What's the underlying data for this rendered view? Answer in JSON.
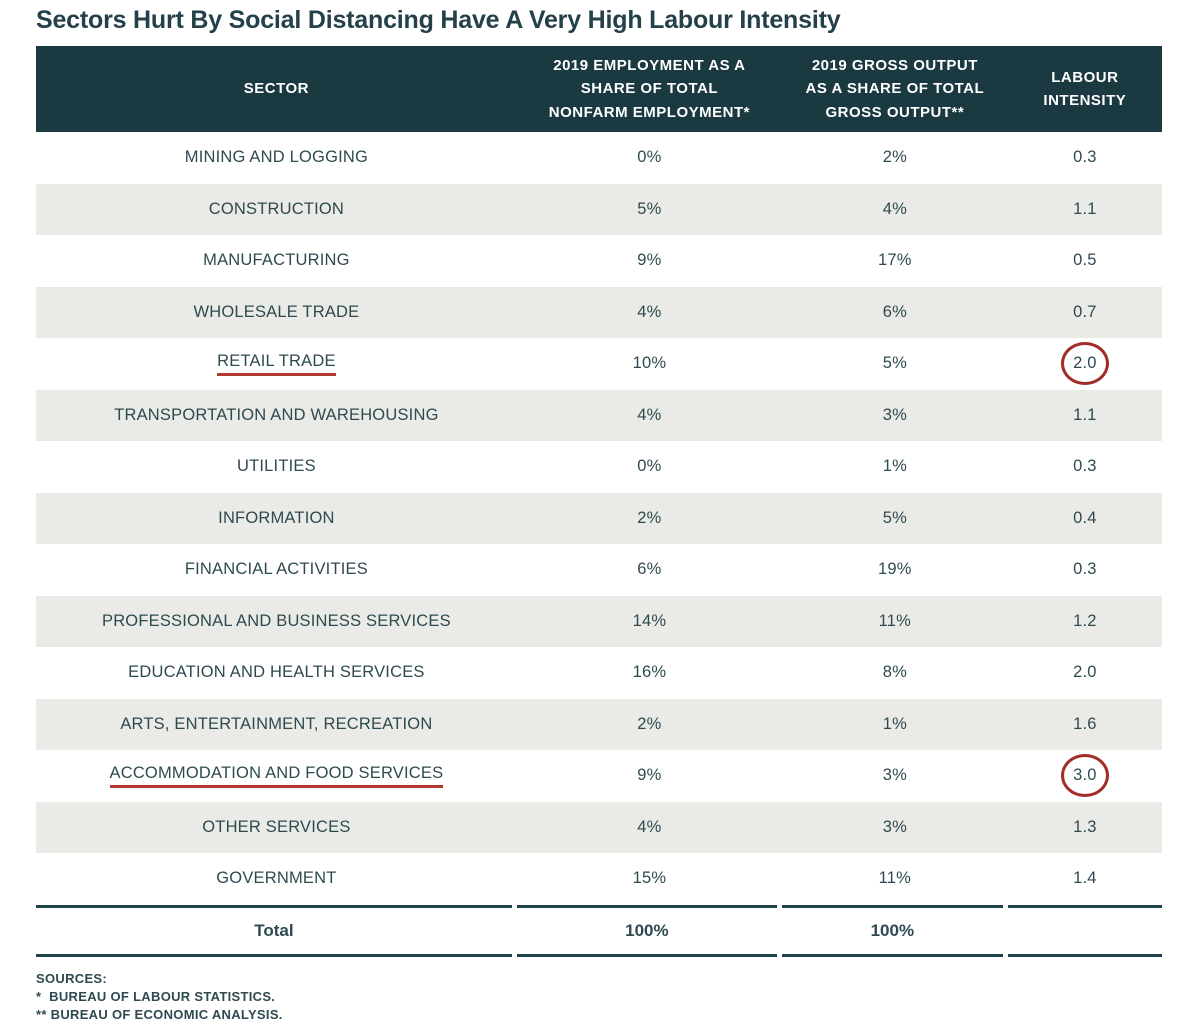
{
  "title": "Sectors Hurt By Social Distancing Have A Very High Labour Intensity",
  "colors": {
    "header_bg": "#1b3940",
    "stripe_bg": "#eaeae6",
    "text": "#2e4a50",
    "annotation_red": "#a22d28"
  },
  "table": {
    "columns": [
      "SECTOR",
      "2019 EMPLOYMENT AS A\nSHARE OF TOTAL\nNONFARM EMPLOYMENT*",
      "2019 GROSS OUTPUT\nAS A SHARE OF TOTAL\nGROSS OUTPUT**",
      "LABOUR\nINTENSITY"
    ],
    "rows": [
      {
        "sector": "MINING AND LOGGING",
        "employment": "0%",
        "output": "2%",
        "intensity": "0.3",
        "underline": false,
        "circle": false
      },
      {
        "sector": "CONSTRUCTION",
        "employment": "5%",
        "output": "4%",
        "intensity": "1.1",
        "underline": false,
        "circle": false
      },
      {
        "sector": "MANUFACTURING",
        "employment": "9%",
        "output": "17%",
        "intensity": "0.5",
        "underline": false,
        "circle": false
      },
      {
        "sector": "WHOLESALE TRADE",
        "employment": "4%",
        "output": "6%",
        "intensity": "0.7",
        "underline": false,
        "circle": false
      },
      {
        "sector": "RETAIL TRADE",
        "employment": "10%",
        "output": "5%",
        "intensity": "2.0",
        "underline": true,
        "circle": true
      },
      {
        "sector": "TRANSPORTATION AND WAREHOUSING",
        "employment": "4%",
        "output": "3%",
        "intensity": "1.1",
        "underline": false,
        "circle": false
      },
      {
        "sector": "UTILITIES",
        "employment": "0%",
        "output": "1%",
        "intensity": "0.3",
        "underline": false,
        "circle": false
      },
      {
        "sector": "INFORMATION",
        "employment": "2%",
        "output": "5%",
        "intensity": "0.4",
        "underline": false,
        "circle": false
      },
      {
        "sector": "FINANCIAL ACTIVITIES",
        "employment": "6%",
        "output": "19%",
        "intensity": "0.3",
        "underline": false,
        "circle": false
      },
      {
        "sector": "PROFESSIONAL AND BUSINESS SERVICES",
        "employment": "14%",
        "output": "11%",
        "intensity": "1.2",
        "underline": false,
        "circle": false
      },
      {
        "sector": "EDUCATION AND HEALTH SERVICES",
        "employment": "16%",
        "output": "8%",
        "intensity": "2.0",
        "underline": false,
        "circle": false
      },
      {
        "sector": "ARTS, ENTERTAINMENT, RECREATION",
        "employment": "2%",
        "output": "1%",
        "intensity": "1.6",
        "underline": false,
        "circle": false
      },
      {
        "sector": "ACCOMMODATION AND FOOD SERVICES",
        "employment": "9%",
        "output": "3%",
        "intensity": "3.0",
        "underline": true,
        "circle": true
      },
      {
        "sector": "OTHER SERVICES",
        "employment": "4%",
        "output": "3%",
        "intensity": "1.3",
        "underline": false,
        "circle": false
      },
      {
        "sector": "GOVERNMENT",
        "employment": "15%",
        "output": "11%",
        "intensity": "1.4",
        "underline": false,
        "circle": false
      }
    ],
    "total": [
      "Total",
      "100%",
      "100%",
      ""
    ]
  },
  "footer": {
    "lines": [
      "SOURCES:",
      "*  BUREAU OF LABOUR STATISTICS.",
      "** BUREAU OF ECONOMIC ANALYSIS."
    ]
  },
  "chart_data": {
    "type": "table",
    "title": "Sectors Hurt By Social Distancing Have A Very High Labour Intensity",
    "columns": [
      "SECTOR",
      "2019 EMPLOYMENT AS A SHARE OF TOTAL NONFARM EMPLOYMENT*",
      "2019 GROSS OUTPUT AS A SHARE OF TOTAL GROSS OUTPUT**",
      "LABOUR INTENSITY"
    ],
    "rows": [
      [
        "MINING AND LOGGING",
        "0%",
        "2%",
        0.3
      ],
      [
        "CONSTRUCTION",
        "5%",
        "4%",
        1.1
      ],
      [
        "MANUFACTURING",
        "9%",
        "17%",
        0.5
      ],
      [
        "WHOLESALE TRADE",
        "4%",
        "6%",
        0.7
      ],
      [
        "RETAIL TRADE",
        "10%",
        "5%",
        2.0
      ],
      [
        "TRANSPORTATION AND WAREHOUSING",
        "4%",
        "3%",
        1.1
      ],
      [
        "UTILITIES",
        "0%",
        "1%",
        0.3
      ],
      [
        "INFORMATION",
        "2%",
        "5%",
        0.4
      ],
      [
        "FINANCIAL ACTIVITIES",
        "6%",
        "19%",
        0.3
      ],
      [
        "PROFESSIONAL AND BUSINESS SERVICES",
        "14%",
        "11%",
        1.2
      ],
      [
        "EDUCATION AND HEALTH SERVICES",
        "16%",
        "8%",
        2.0
      ],
      [
        "ARTS, ENTERTAINMENT, RECREATION",
        "2%",
        "1%",
        1.6
      ],
      [
        "ACCOMMODATION AND FOOD SERVICES",
        "9%",
        "3%",
        3.0
      ],
      [
        "OTHER SERVICES",
        "4%",
        "3%",
        1.3
      ],
      [
        "GOVERNMENT",
        "15%",
        "11%",
        1.4
      ]
    ],
    "total_row": [
      "Total",
      "100%",
      "100%",
      null
    ],
    "annotations": [
      "RETAIL TRADE sector name underlined in red; its labour intensity value 2.0 circled in red",
      "ACCOMMODATION AND FOOD SERVICES sector name underlined in red; its labour intensity value 3.0 circled in red"
    ],
    "sources": [
      "* BUREAU OF LABOUR STATISTICS.",
      "** BUREAU OF ECONOMIC ANALYSIS."
    ]
  }
}
